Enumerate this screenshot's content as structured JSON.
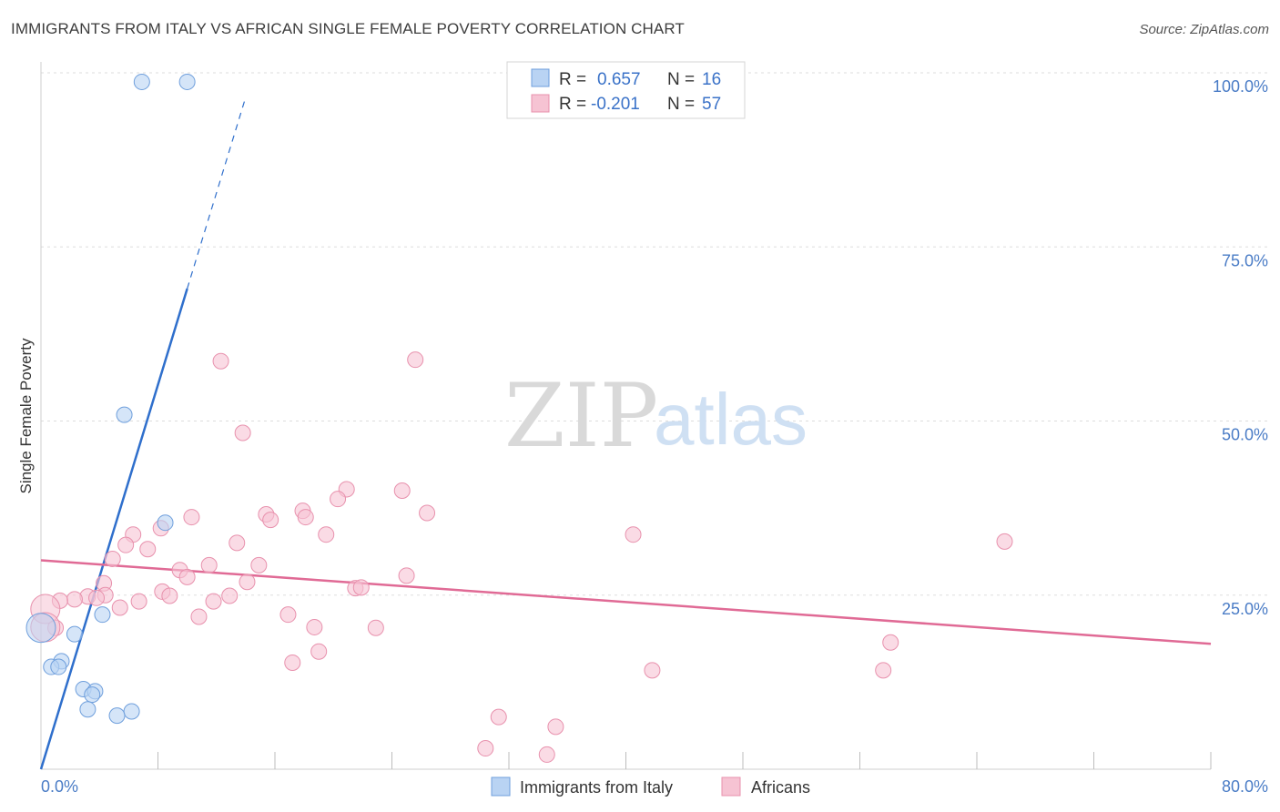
{
  "title": "IMMIGRANTS FROM ITALY VS AFRICAN SINGLE FEMALE POVERTY CORRELATION CHART",
  "source": "Source: ZipAtlas.com",
  "watermark": {
    "zip": "ZIP",
    "atlas": "atlas"
  },
  "colors": {
    "blue_fill": "#b9d3f3",
    "blue_stroke": "#6f9fdc",
    "blue_line": "#2f6fcc",
    "pink_fill": "#f6c3d3",
    "pink_stroke": "#e891ad",
    "pink_line": "#e06a95",
    "grid": "#dddddd",
    "tick_text": "#4a7cc6"
  },
  "stats": {
    "blue": {
      "r_label": "R =",
      "r_value": "0.657",
      "n_label": "N =",
      "n_value": "16"
    },
    "pink": {
      "r_label": "R =",
      "r_value": "-0.201",
      "n_label": "N =",
      "n_value": "57"
    }
  },
  "chart_data": {
    "type": "scatter",
    "title": "IMMIGRANTS FROM ITALY VS AFRICAN SINGLE FEMALE POVERTY CORRELATION CHART",
    "xlabel": "",
    "ylabel": "Single Female Poverty",
    "xlim": [
      0,
      80
    ],
    "ylim": [
      0,
      100
    ],
    "x_tick_labels": [
      "0.0%",
      "80.0%"
    ],
    "y_tick_values": [
      25,
      50,
      75,
      100
    ],
    "y_tick_labels": [
      "25.0%",
      "50.0%",
      "75.0%",
      "100.0%"
    ],
    "legend": [
      "Immigrants from Italy",
      "Africans"
    ],
    "series": [
      {
        "name": "Immigrants from Italy",
        "color": "blue",
        "points": [
          [
            6.9,
            98.7
          ],
          [
            10.0,
            98.7
          ],
          [
            5.7,
            50.9
          ],
          [
            8.5,
            35.4
          ],
          [
            4.2,
            22.2
          ],
          [
            2.3,
            19.4
          ],
          [
            1.4,
            15.5
          ],
          [
            0.7,
            14.7
          ],
          [
            1.2,
            14.7
          ],
          [
            0.0,
            20.3
          ],
          [
            2.9,
            11.5
          ],
          [
            3.7,
            11.2
          ],
          [
            3.5,
            10.7
          ],
          [
            3.2,
            8.6
          ],
          [
            6.2,
            8.3
          ],
          [
            5.2,
            7.7
          ]
        ],
        "trend": {
          "x0": 0.0,
          "y0": 0.0,
          "x1": 10.0,
          "y1": 69.0,
          "dash_to_x": 14.0,
          "dash_to_y": 96.5
        }
      },
      {
        "name": "Africans",
        "color": "pink",
        "points": [
          [
            12.3,
            58.6
          ],
          [
            25.6,
            58.8
          ],
          [
            13.8,
            48.3
          ],
          [
            20.9,
            40.2
          ],
          [
            24.7,
            40.0
          ],
          [
            20.3,
            38.8
          ],
          [
            26.4,
            36.8
          ],
          [
            17.9,
            37.1
          ],
          [
            18.1,
            36.2
          ],
          [
            15.4,
            36.6
          ],
          [
            10.3,
            36.2
          ],
          [
            15.7,
            35.8
          ],
          [
            8.2,
            34.6
          ],
          [
            6.3,
            33.7
          ],
          [
            40.5,
            33.7
          ],
          [
            65.9,
            32.7
          ],
          [
            19.5,
            33.7
          ],
          [
            13.4,
            32.5
          ],
          [
            5.8,
            32.2
          ],
          [
            7.3,
            31.6
          ],
          [
            4.9,
            30.2
          ],
          [
            11.5,
            29.3
          ],
          [
            14.9,
            29.3
          ],
          [
            9.5,
            28.6
          ],
          [
            10.0,
            27.6
          ],
          [
            25.0,
            27.8
          ],
          [
            4.3,
            26.7
          ],
          [
            14.1,
            26.9
          ],
          [
            21.5,
            26.0
          ],
          [
            21.9,
            26.1
          ],
          [
            8.3,
            25.5
          ],
          [
            8.8,
            24.9
          ],
          [
            4.4,
            25.0
          ],
          [
            12.9,
            24.9
          ],
          [
            3.2,
            24.8
          ],
          [
            6.7,
            24.1
          ],
          [
            11.8,
            24.1
          ],
          [
            2.3,
            24.4
          ],
          [
            3.8,
            24.6
          ],
          [
            1.3,
            24.2
          ],
          [
            0.3,
            23.0
          ],
          [
            5.4,
            23.2
          ],
          [
            16.9,
            22.2
          ],
          [
            10.8,
            21.9
          ],
          [
            18.7,
            20.4
          ],
          [
            22.9,
            20.3
          ],
          [
            1.0,
            20.3
          ],
          [
            58.1,
            18.2
          ],
          [
            19.0,
            16.9
          ],
          [
            17.2,
            15.3
          ],
          [
            41.8,
            14.2
          ],
          [
            57.6,
            14.2
          ],
          [
            31.3,
            7.5
          ],
          [
            35.2,
            6.1
          ],
          [
            30.4,
            3.0
          ],
          [
            34.6,
            2.1
          ],
          [
            0.3,
            20.4
          ]
        ],
        "trend": {
          "x0": 0.0,
          "y0": 30.0,
          "x1": 80.0,
          "y1": 18.0
        }
      }
    ]
  }
}
